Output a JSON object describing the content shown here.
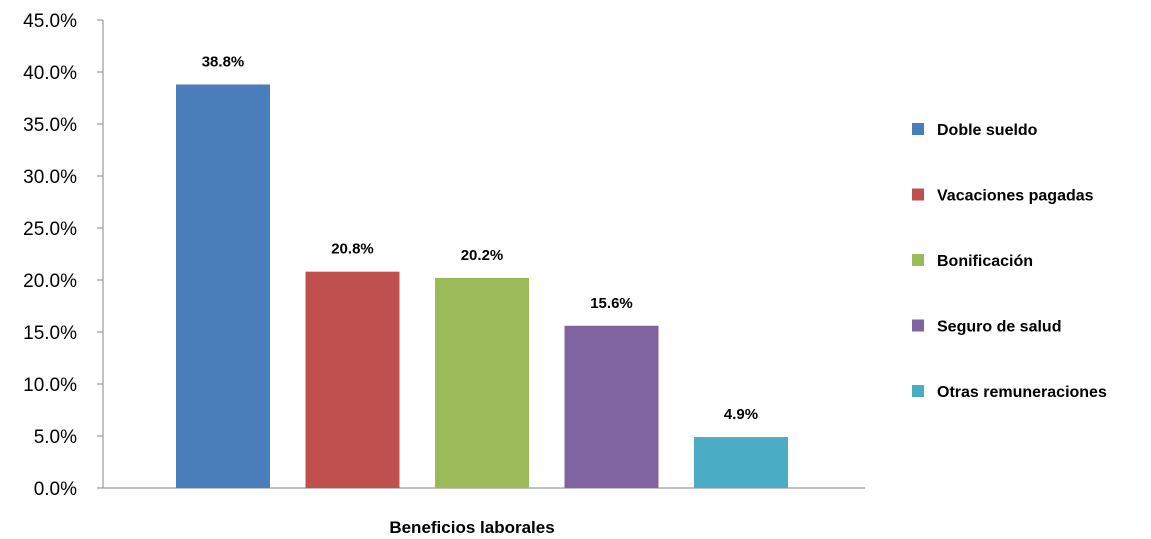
{
  "chart_data": {
    "type": "bar",
    "xlabel": "Beneficios laborales",
    "ylabel": "",
    "ylim": [
      0,
      45
    ],
    "y_ticks": [
      "0.0%",
      "5.0%",
      "10.0%",
      "15.0%",
      "20.0%",
      "25.0%",
      "30.0%",
      "35.0%",
      "40.0%",
      "45.0%"
    ],
    "legend_position": "right",
    "grid": false,
    "categories": [
      "Doble sueldo",
      "Vacaciones pagadas",
      "Bonificación",
      "Seguro de salud",
      "Otras remuneraciones"
    ],
    "values": [
      38.8,
      20.8,
      20.2,
      15.6,
      4.9
    ],
    "value_labels": [
      "38.8%",
      "20.8%",
      "20.2%",
      "15.6%",
      "4.9%"
    ],
    "colors": [
      "#4a7ebb",
      "#c0504d",
      "#9bbb59",
      "#8064a2",
      "#4bacc6"
    ]
  }
}
